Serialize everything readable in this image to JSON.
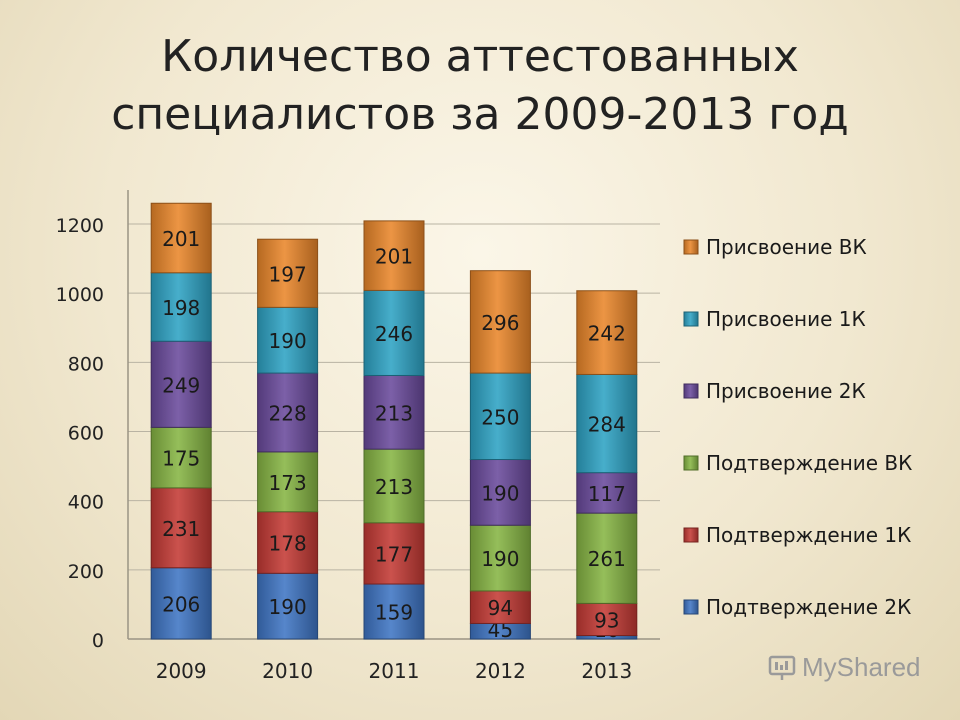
{
  "title_line1": "Количество аттестованных",
  "title_line2": "специалистов за 2009-2013 год",
  "watermark": "MyShared",
  "chart_data": {
    "type": "bar",
    "stacked": true,
    "categories": [
      "2009",
      "2010",
      "2011",
      "2012",
      "2013"
    ],
    "ylim": [
      0,
      1200
    ],
    "yticks": [
      0,
      200,
      400,
      600,
      800,
      1000,
      1200
    ],
    "grid": true,
    "legend_position": "right",
    "series": [
      {
        "name": "Подтверждение 2К",
        "color": "#3f75c4",
        "values": [
          206,
          190,
          159,
          45,
          10
        ]
      },
      {
        "name": "Подтверждение 1К",
        "color": "#c43a35",
        "values": [
          231,
          178,
          177,
          94,
          93
        ]
      },
      {
        "name": "Подтверждение ВК",
        "color": "#86b544",
        "values": [
          175,
          173,
          213,
          190,
          261
        ]
      },
      {
        "name": "Присвоение 2К",
        "color": "#6a4a9c",
        "values": [
          249,
          228,
          213,
          190,
          117
        ]
      },
      {
        "name": "Присвоение 1К",
        "color": "#2ea3c4",
        "values": [
          198,
          190,
          246,
          250,
          284
        ]
      },
      {
        "name": "Присвоение ВК",
        "color": "#e9862a",
        "values": [
          201,
          197,
          201,
          296,
          242
        ]
      }
    ],
    "legend_order": [
      "Присвоение ВК",
      "Присвоение 1К",
      "Присвоение 2К",
      "Подтверждение ВК",
      "Подтверждение 1К",
      "Подтверждение 2К"
    ]
  }
}
